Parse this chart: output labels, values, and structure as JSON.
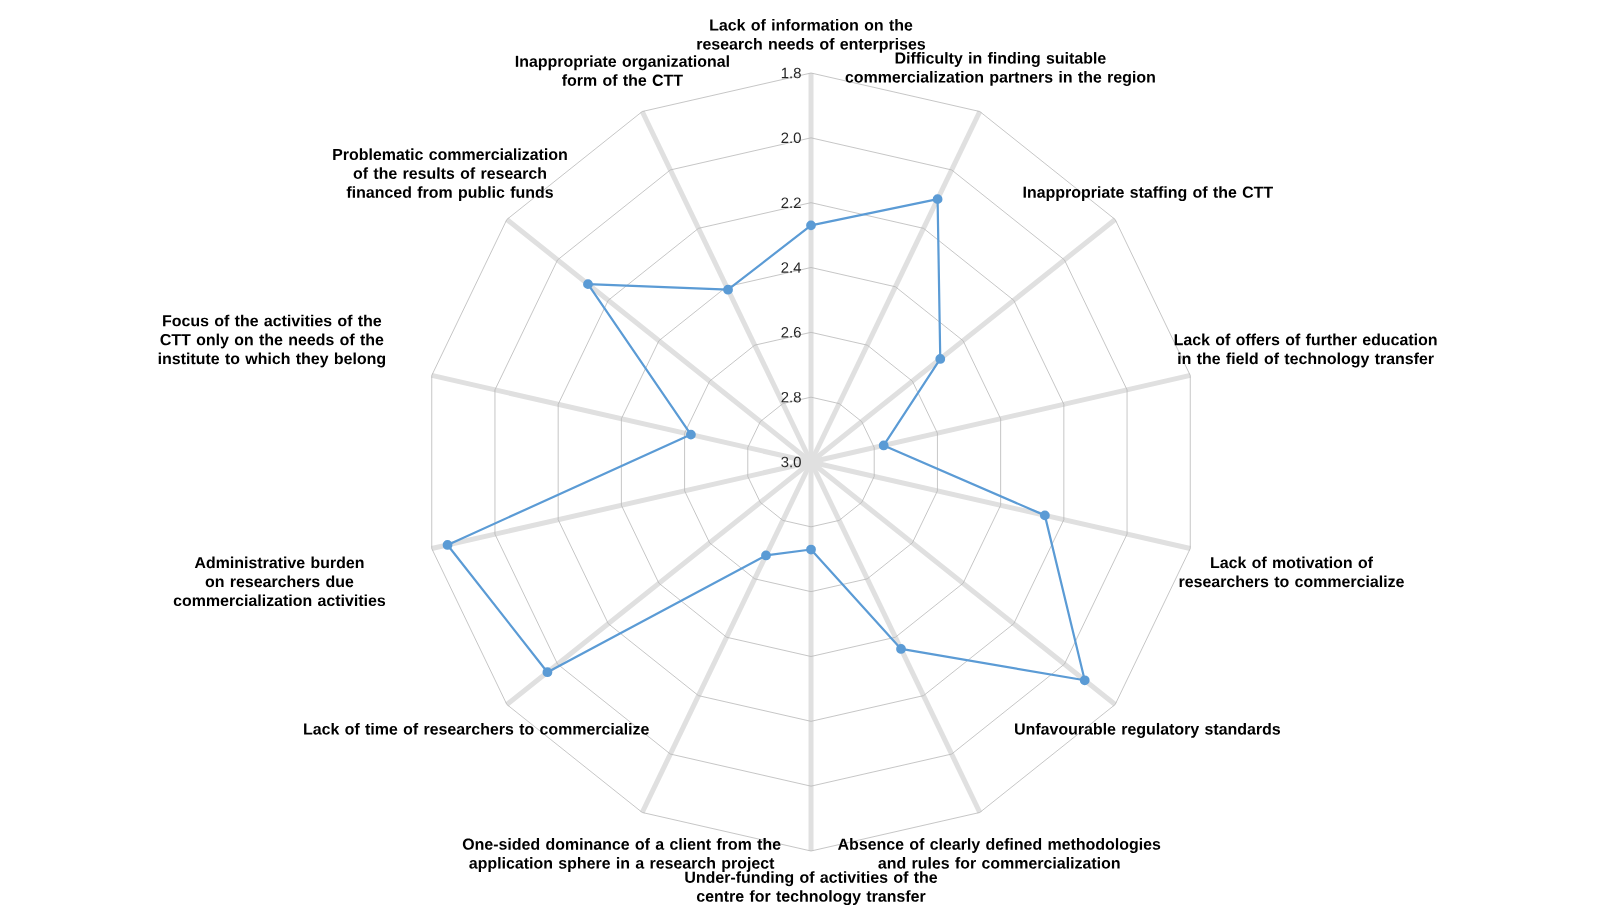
{
  "chart_data": {
    "type": "radar",
    "categories": [
      "Lack of information on the research needs of enterprises",
      "Difficulty in finding suitable commercialization partners in the region",
      "Inappropriate staffing of the CTT",
      "Lack of offers of further education in the field of technology transfer",
      "Lack of motivation of researchers to commercialize",
      "Unfavourable regulatory standards",
      "Absence of clearly defined methodologies and rules for commercialization",
      "Under-funding of activities of the centre for technology transfer",
      "One-sided dominance of a client from the application sphere in a research project",
      "Lack of time of researchers to commercialize",
      "Administrative burden on researchers due commercialization activities",
      "Focus of the activities of the CTT only on the needs of the institute to which they belong",
      "Problematic commercialization of the results of research financed from public funds",
      "Inappropriate organizational form of the CTT"
    ],
    "series": [
      {
        "color": "#5b9bd5",
        "values": [
          2.27,
          2.1,
          2.49,
          2.77,
          2.26,
          1.92,
          2.36,
          2.73,
          2.68,
          1.96,
          1.85,
          2.62,
          2.12,
          2.41
        ]
      }
    ],
    "ylim": [
      3.0,
      1.8
    ],
    "yticks": [
      1.8,
      {
        "value": 2.0,
        "label": "2.0"
      },
      2.2,
      2.4,
      2.6,
      2.8,
      {
        "value": 3.0,
        "label": "3.0"
      }
    ],
    "grid": true,
    "marker": "circle"
  }
}
